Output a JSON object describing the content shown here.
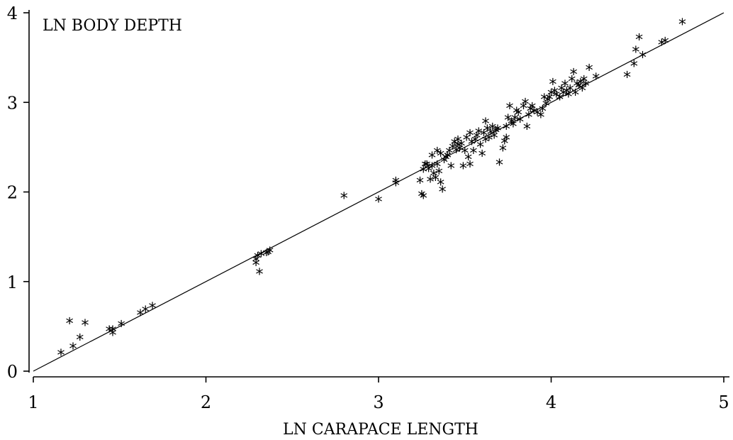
{
  "chart_data": {
    "type": "scatter",
    "xlabel": "LN CARAPACE LENGTH",
    "ylabel": "LN BODY DEPTH",
    "xlim": [
      1,
      5
    ],
    "ylim": [
      0,
      4
    ],
    "xticks": [
      1,
      2,
      3,
      4,
      5
    ],
    "yticks": [
      0,
      1,
      2,
      3,
      4
    ],
    "marker": "*",
    "grid": false,
    "fit_line": {
      "slope": 1.0,
      "intercept": -1.0,
      "x_range": [
        1,
        5
      ]
    },
    "series": [
      {
        "points": [
          [
            1.16,
            0.2
          ],
          [
            1.21,
            0.55
          ],
          [
            1.23,
            0.27
          ],
          [
            1.27,
            0.37
          ],
          [
            1.3,
            0.53
          ],
          [
            1.44,
            0.46
          ],
          [
            1.46,
            0.42
          ],
          [
            1.46,
            0.46
          ],
          [
            1.51,
            0.52
          ],
          [
            1.62,
            0.64
          ],
          [
            1.65,
            0.68
          ],
          [
            1.69,
            0.72
          ],
          [
            2.29,
            1.24
          ],
          [
            2.29,
            1.2
          ],
          [
            2.3,
            1.28
          ],
          [
            2.31,
            1.1
          ],
          [
            2.32,
            1.3
          ],
          [
            2.35,
            1.31
          ],
          [
            2.36,
            1.32
          ],
          [
            2.37,
            1.34
          ],
          [
            2.8,
            1.95
          ],
          [
            3.0,
            1.91
          ],
          [
            3.1,
            2.12
          ],
          [
            3.1,
            2.09
          ],
          [
            3.24,
            2.12
          ],
          [
            3.25,
            1.97
          ],
          [
            3.26,
            1.95
          ],
          [
            3.26,
            2.24
          ],
          [
            3.27,
            2.3
          ],
          [
            3.28,
            2.3
          ],
          [
            3.29,
            2.25
          ],
          [
            3.3,
            2.13
          ],
          [
            3.31,
            2.28
          ],
          [
            3.31,
            2.4
          ],
          [
            3.32,
            2.2
          ],
          [
            3.33,
            2.15
          ],
          [
            3.34,
            2.45
          ],
          [
            3.34,
            2.3
          ],
          [
            3.35,
            2.22
          ],
          [
            3.36,
            2.1
          ],
          [
            3.36,
            2.42
          ],
          [
            3.37,
            2.02
          ],
          [
            3.38,
            2.35
          ],
          [
            3.39,
            2.38
          ],
          [
            3.4,
            2.4
          ],
          [
            3.41,
            2.45
          ],
          [
            3.42,
            2.28
          ],
          [
            3.43,
            2.5
          ],
          [
            3.44,
            2.55
          ],
          [
            3.45,
            2.46
          ],
          [
            3.46,
            2.52
          ],
          [
            3.46,
            2.58
          ],
          [
            3.47,
            2.48
          ],
          [
            3.48,
            2.53
          ],
          [
            3.49,
            2.28
          ],
          [
            3.5,
            2.45
          ],
          [
            3.51,
            2.6
          ],
          [
            3.52,
            2.38
          ],
          [
            3.53,
            2.65
          ],
          [
            3.53,
            2.3
          ],
          [
            3.54,
            2.55
          ],
          [
            3.55,
            2.45
          ],
          [
            3.56,
            2.58
          ],
          [
            3.57,
            2.62
          ],
          [
            3.58,
            2.67
          ],
          [
            3.59,
            2.52
          ],
          [
            3.6,
            2.42
          ],
          [
            3.61,
            2.65
          ],
          [
            3.62,
            2.58
          ],
          [
            3.62,
            2.78
          ],
          [
            3.63,
            2.7
          ],
          [
            3.64,
            2.6
          ],
          [
            3.65,
            2.66
          ],
          [
            3.66,
            2.72
          ],
          [
            3.67,
            2.62
          ],
          [
            3.68,
            2.68
          ],
          [
            3.69,
            2.7
          ],
          [
            3.7,
            2.32
          ],
          [
            3.72,
            2.48
          ],
          [
            3.73,
            2.56
          ],
          [
            3.74,
            2.6
          ],
          [
            3.74,
            2.72
          ],
          [
            3.75,
            2.82
          ],
          [
            3.76,
            2.95
          ],
          [
            3.77,
            2.78
          ],
          [
            3.78,
            2.75
          ],
          [
            3.79,
            2.82
          ],
          [
            3.8,
            2.9
          ],
          [
            3.81,
            2.88
          ],
          [
            3.82,
            2.8
          ],
          [
            3.84,
            2.95
          ],
          [
            3.85,
            3.0
          ],
          [
            3.86,
            2.72
          ],
          [
            3.87,
            2.85
          ],
          [
            3.88,
            2.92
          ],
          [
            3.89,
            2.95
          ],
          [
            3.9,
            2.9
          ],
          [
            3.92,
            2.88
          ],
          [
            3.94,
            2.85
          ],
          [
            3.95,
            2.92
          ],
          [
            3.96,
            3.05
          ],
          [
            3.97,
            2.98
          ],
          [
            3.98,
            3.02
          ],
          [
            3.99,
            3.05
          ],
          [
            4.0,
            3.1
          ],
          [
            4.01,
            3.22
          ],
          [
            4.02,
            3.12
          ],
          [
            4.03,
            3.08
          ],
          [
            4.05,
            3.05
          ],
          [
            4.06,
            3.15
          ],
          [
            4.07,
            3.1
          ],
          [
            4.08,
            3.2
          ],
          [
            4.09,
            3.12
          ],
          [
            4.1,
            3.08
          ],
          [
            4.11,
            3.15
          ],
          [
            4.12,
            3.25
          ],
          [
            4.13,
            3.33
          ],
          [
            4.14,
            3.1
          ],
          [
            4.15,
            3.2
          ],
          [
            4.16,
            3.18
          ],
          [
            4.17,
            3.22
          ],
          [
            4.18,
            3.15
          ],
          [
            4.19,
            3.25
          ],
          [
            4.2,
            3.2
          ],
          [
            4.22,
            3.38
          ],
          [
            4.26,
            3.28
          ],
          [
            4.44,
            3.3
          ],
          [
            4.48,
            3.42
          ],
          [
            4.49,
            3.58
          ],
          [
            4.51,
            3.72
          ],
          [
            4.53,
            3.52
          ],
          [
            4.64,
            3.66
          ],
          [
            4.66,
            3.68
          ],
          [
            4.76,
            3.89
          ]
        ]
      }
    ]
  }
}
